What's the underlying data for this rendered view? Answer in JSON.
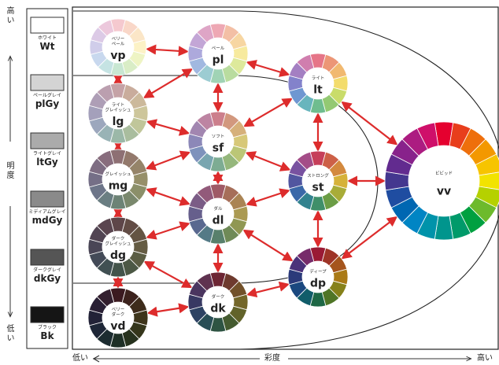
{
  "vertical_axis": {
    "high": "高い",
    "label": "明度",
    "low": "低い"
  },
  "horizontal_axis": {
    "low": "低い",
    "label": "彩度",
    "high": "高い"
  },
  "swatches": [
    {
      "name": "ホワイト",
      "code": "Wt",
      "color": "#ffffff"
    },
    {
      "name": "ペールグレイ",
      "code": "plGy",
      "color": "#d4d4d4"
    },
    {
      "name": "ライトグレイ",
      "code": "ltGy",
      "color": "#ababab"
    },
    {
      "name": "ミディアムグレイ",
      "code": "mdGy",
      "color": "#8a8a8a"
    },
    {
      "name": "ダークグレイ",
      "code": "dkGy",
      "color": "#555555"
    },
    {
      "name": "ブラック",
      "code": "Bk",
      "color": "#151515"
    }
  ],
  "tones": [
    {
      "id": "vp",
      "name": [
        "ベリー",
        "ペール"
      ],
      "code": "vp",
      "colors": [
        "#f5c9cf",
        "#f9d7c8",
        "#fbe6c7",
        "#fcf2c6",
        "#eef4c4",
        "#d9edc6",
        "#c8e7d2",
        "#c5e3e3",
        "#c8d8ee",
        "#d0cdea",
        "#dccae6",
        "#ecc8dc"
      ]
    },
    {
      "id": "pl",
      "name": [
        "ペール"
      ],
      "code": "pl",
      "colors": [
        "#eea8b4",
        "#f3bfa5",
        "#f7d6a2",
        "#f7ea9e",
        "#dde99b",
        "#b9dc9f",
        "#a0d3b5",
        "#9cccd2",
        "#a1b8e0",
        "#ada9dc",
        "#c3a6d6",
        "#dea5c6"
      ]
    },
    {
      "id": "lt",
      "name": [
        "ライト"
      ],
      "code": "lt",
      "colors": [
        "#e67588",
        "#ec9676",
        "#f1b970",
        "#f3dc6c",
        "#c9dc6a",
        "#93c972",
        "#6fbd8f",
        "#68b5bd",
        "#6f97d1",
        "#8382cb",
        "#a47fc2",
        "#d07eae"
      ]
    },
    {
      "id": "lg",
      "name": [
        "ライト",
        "グレイッシュ"
      ],
      "code": "lg",
      "colors": [
        "#c5a2a6",
        "#c9ac9c",
        "#ccb99b",
        "#cdc69b",
        "#c0c69a",
        "#a9bd9e",
        "#9bb8a8",
        "#99b3b6",
        "#9ca7bd",
        "#a4a0bb",
        "#ae9eb6",
        "#bb9faf"
      ]
    },
    {
      "id": "sf",
      "name": [
        "ソフト"
      ],
      "code": "sf",
      "colors": [
        "#cc7f8c",
        "#d2987e",
        "#d6b07a",
        "#d7c878",
        "#bbc676",
        "#95b77c",
        "#7dac93",
        "#79a6b0",
        "#7e92bc",
        "#8c88b8",
        "#a286b0",
        "#bd84a2"
      ]
    },
    {
      "id": "mg",
      "name": [
        "グレイッシュ"
      ],
      "code": "mg",
      "colors": [
        "#8e7074",
        "#93796c",
        "#958469",
        "#968f69",
        "#8b8f69",
        "#7a886d",
        "#6d8376",
        "#6a7e82",
        "#6d7589",
        "#756f87",
        "#7e6d83",
        "#886d7d"
      ]
    },
    {
      "id": "st",
      "name": [
        "ストロング"
      ],
      "code": "st",
      "colors": [
        "#c63f5a",
        "#cd6047",
        "#d3893e",
        "#d6b23a",
        "#a8ac38",
        "#6b9d45",
        "#3f8f6a",
        "#33838f",
        "#3b68a8",
        "#5156a0",
        "#7852a0",
        "#a44d88"
      ]
    },
    {
      "id": "dl",
      "name": [
        "ダル"
      ],
      "code": "dl",
      "colors": [
        "#9f5a66",
        "#a66e59",
        "#aa8454",
        "#ab9a52",
        "#909752",
        "#6f8a57",
        "#58806c",
        "#547a86",
        "#59688f",
        "#665f8c",
        "#7b5c86",
        "#925a7a"
      ]
    },
    {
      "id": "dg",
      "name": [
        "ダーク",
        "グレイッシュ"
      ],
      "code": "dg",
      "colors": [
        "#5e4649",
        "#624c45",
        "#645443",
        "#655c43",
        "#5b5d43",
        "#4c5845",
        "#43544b",
        "#415053",
        "#434a57",
        "#4a4656",
        "#524553",
        "#5a454f"
      ]
    },
    {
      "id": "vv",
      "name": [
        "ビビッド"
      ],
      "code": "vv",
      "colors": [
        "#e5002f",
        "#e83e1c",
        "#ee6f0c",
        "#f39800",
        "#f7c400",
        "#f2e300",
        "#b5d100",
        "#6dba2c",
        "#00a040",
        "#009a6a",
        "#00958d",
        "#0093aa",
        "#0085c4",
        "#0067b2",
        "#1f4da1",
        "#44378f",
        "#622b8f",
        "#88228b",
        "#ac1c81",
        "#cf0f6a"
      ]
    },
    {
      "id": "dp",
      "name": [
        "ディープ"
      ],
      "code": "dp",
      "colors": [
        "#9a1a34",
        "#9e3426",
        "#a5551c",
        "#aa7a16",
        "#86811a",
        "#4f7526",
        "#1e6846",
        "#115d6a",
        "#1a487f",
        "#2b3a7a",
        "#4b327a",
        "#772c6a"
      ]
    },
    {
      "id": "dk",
      "name": [
        "ダーク"
      ],
      "code": "dk",
      "colors": [
        "#6d2634",
        "#6e3a2e",
        "#72512a",
        "#736629",
        "#62632a",
        "#455b30",
        "#2e5443",
        "#294e56",
        "#2d4263",
        "#383963",
        "#4a355f",
        "#5f3250"
      ]
    },
    {
      "id": "vd",
      "name": [
        "ベリー",
        "ダーク"
      ],
      "code": "vd",
      "colors": [
        "#3b1a20",
        "#3c221d",
        "#3e2c1b",
        "#3e351b",
        "#35361b",
        "#27321e",
        "#1e2f26",
        "#1c2c30",
        "#1e2637",
        "#222237",
        "#2a2035",
        "#331f2e"
      ]
    }
  ]
}
